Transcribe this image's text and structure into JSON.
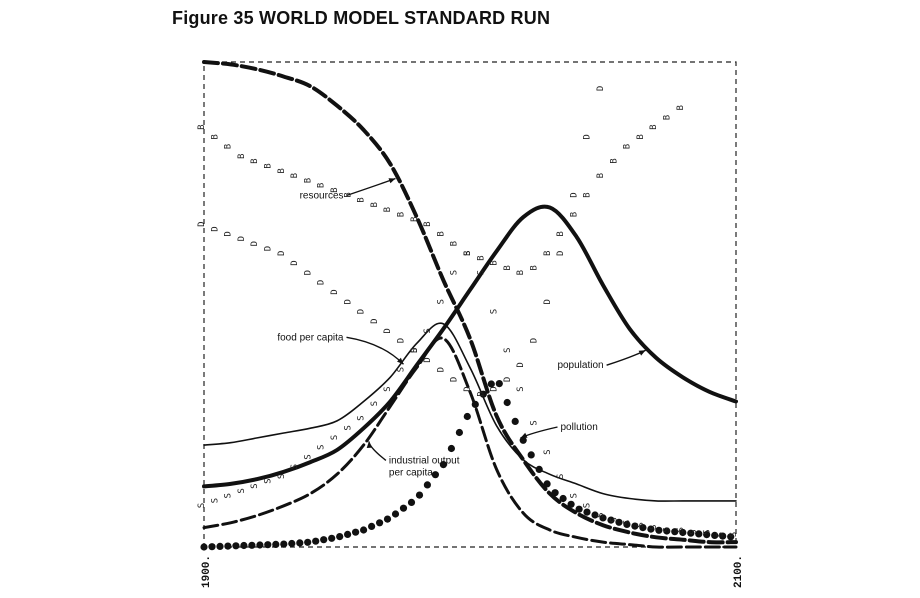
{
  "title": "Figure 35 WORLD MODEL STANDARD RUN",
  "chart_data": {
    "type": "line",
    "xlim": [
      1900,
      2100
    ],
    "x_tick_labels": [
      "1900.",
      "2100."
    ],
    "grid": false,
    "frame": "dashed",
    "series": [
      {
        "key": "resources",
        "name": "resources",
        "marker": "dash",
        "stroke_width": 4,
        "x": [
          1900,
          1910,
          1920,
          1930,
          1940,
          1950,
          1960,
          1970,
          1980,
          1990,
          2000,
          2010,
          2020,
          2030,
          2040,
          2050,
          2060,
          2070,
          2080,
          2090,
          2100
        ],
        "y": [
          1.0,
          0.995,
          0.985,
          0.97,
          0.95,
          0.91,
          0.86,
          0.79,
          0.68,
          0.55,
          0.43,
          0.27,
          0.18,
          0.11,
          0.07,
          0.045,
          0.03,
          0.02,
          0.015,
          0.01,
          0.01
        ]
      },
      {
        "key": "population",
        "name": "population",
        "marker": "line",
        "stroke_width": 4,
        "x": [
          1900,
          1910,
          1920,
          1930,
          1940,
          1950,
          1960,
          1970,
          1980,
          1990,
          2000,
          2010,
          2020,
          2030,
          2040,
          2050,
          2060,
          2070,
          2080,
          2090,
          2100
        ],
        "y": [
          0.125,
          0.13,
          0.14,
          0.155,
          0.175,
          0.2,
          0.245,
          0.3,
          0.375,
          0.45,
          0.53,
          0.61,
          0.68,
          0.7,
          0.64,
          0.54,
          0.45,
          0.39,
          0.35,
          0.32,
          0.3
        ]
      },
      {
        "key": "food_per_capita",
        "name": "food per capita",
        "marker": "line",
        "stroke_width": 1.6,
        "x": [
          1900,
          1910,
          1920,
          1930,
          1940,
          1950,
          1960,
          1970,
          1980,
          1990,
          2000,
          2010,
          2020,
          2030,
          2040,
          2050,
          2060,
          2070,
          2080,
          2090,
          2100
        ],
        "y": [
          0.21,
          0.215,
          0.225,
          0.235,
          0.245,
          0.26,
          0.3,
          0.35,
          0.42,
          0.46,
          0.37,
          0.25,
          0.18,
          0.15,
          0.13,
          0.11,
          0.1,
          0.095,
          0.095,
          0.095,
          0.095
        ]
      },
      {
        "key": "industrial_output_per_capita",
        "name": "industrial output per capita",
        "marker": "dash",
        "stroke_width": 3,
        "x": [
          1900,
          1910,
          1920,
          1930,
          1940,
          1950,
          1960,
          1970,
          1980,
          1990,
          2000,
          2010,
          2020,
          2030,
          2040,
          2050,
          2060,
          2070,
          2080,
          2090,
          2100
        ],
        "y": [
          0.04,
          0.05,
          0.065,
          0.085,
          0.11,
          0.15,
          0.21,
          0.29,
          0.37,
          0.43,
          0.32,
          0.16,
          0.07,
          0.035,
          0.02,
          0.01,
          0.005,
          0.0,
          0.0,
          0.0,
          0.0
        ]
      },
      {
        "key": "pollution",
        "name": "pollution",
        "marker": "dot",
        "stroke_width": 0,
        "x": [
          1900,
          1910,
          1920,
          1930,
          1940,
          1950,
          1960,
          1970,
          1980,
          1990,
          2000,
          2010,
          2020,
          2030,
          2040,
          2050,
          2060,
          2070,
          2080,
          2090,
          2100
        ],
        "y": [
          0.0,
          0.002,
          0.004,
          0.006,
          0.01,
          0.02,
          0.035,
          0.06,
          0.1,
          0.17,
          0.28,
          0.35,
          0.22,
          0.12,
          0.08,
          0.06,
          0.045,
          0.035,
          0.03,
          0.025,
          0.02
        ]
      },
      {
        "key": "birth_rate",
        "name": "B",
        "marker": "letter",
        "letter": "B",
        "x": [
          1900,
          1905,
          1910,
          1915,
          1920,
          1925,
          1930,
          1935,
          1940,
          1945,
          1950,
          1955,
          1960,
          1965,
          1970,
          1975,
          1980,
          1985,
          1990,
          1995,
          2000,
          2005,
          2010,
          2015,
          2020,
          2025,
          2030,
          2035,
          2040,
          2045,
          2050,
          2055,
          2060,
          2065,
          2070,
          2075,
          2080
        ],
        "y": [
          0.86,
          0.84,
          0.82,
          0.8,
          0.79,
          0.78,
          0.77,
          0.76,
          0.75,
          0.74,
          0.73,
          0.72,
          0.71,
          0.7,
          0.69,
          0.68,
          0.67,
          0.66,
          0.64,
          0.62,
          0.6,
          0.59,
          0.58,
          0.57,
          0.56,
          0.57,
          0.6,
          0.64,
          0.68,
          0.72,
          0.76,
          0.79,
          0.82,
          0.84,
          0.86,
          0.88,
          0.9
        ]
      },
      {
        "key": "death_rate",
        "name": "D",
        "marker": "letter",
        "letter": "D",
        "x": [
          1900,
          1905,
          1910,
          1915,
          1920,
          1925,
          1930,
          1935,
          1940,
          1945,
          1950,
          1955,
          1960,
          1965,
          1970,
          1975,
          1980,
          1985,
          1990,
          1995,
          2000,
          2005,
          2010,
          2015,
          2020,
          2025,
          2030,
          2035,
          2040,
          2045,
          2050
        ],
        "y": [
          0.66,
          0.65,
          0.64,
          0.63,
          0.62,
          0.61,
          0.6,
          0.58,
          0.56,
          0.54,
          0.52,
          0.5,
          0.48,
          0.46,
          0.44,
          0.42,
          0.4,
          0.38,
          0.36,
          0.34,
          0.32,
          0.31,
          0.32,
          0.34,
          0.37,
          0.42,
          0.5,
          0.6,
          0.72,
          0.84,
          0.94
        ]
      },
      {
        "key": "services_per_capita",
        "name": "S",
        "marker": "letter",
        "letter": "S",
        "x": [
          1900,
          1905,
          1910,
          1915,
          1920,
          1925,
          1930,
          1935,
          1940,
          1945,
          1950,
          1955,
          1960,
          1965,
          1970,
          1975,
          1980,
          1985,
          1990,
          1995,
          2000,
          2005,
          2010,
          2015,
          2020,
          2025,
          2030,
          2035,
          2040,
          2045,
          2050,
          2055,
          2060,
          2065,
          2070,
          2075,
          2080,
          2085,
          2090,
          2095,
          2100
        ],
        "y": [
          0.08,
          0.09,
          0.1,
          0.11,
          0.12,
          0.13,
          0.14,
          0.16,
          0.18,
          0.2,
          0.22,
          0.24,
          0.26,
          0.29,
          0.32,
          0.36,
          0.4,
          0.44,
          0.5,
          0.56,
          0.6,
          0.56,
          0.48,
          0.4,
          0.32,
          0.25,
          0.19,
          0.14,
          0.1,
          0.08,
          0.06,
          0.05,
          0.045,
          0.04,
          0.035,
          0.03,
          0.03,
          0.025,
          0.025,
          0.02,
          0.02
        ]
      }
    ],
    "annotations": [
      {
        "series": "resources",
        "text": "resources",
        "at_x": 1972,
        "pos": "left"
      },
      {
        "series": "food_per_capita",
        "text": "food per capita",
        "at_x": 1975,
        "pos": "left"
      },
      {
        "series": "industrial_output_per_capita",
        "text": "industrial output",
        "text2": "per capita",
        "at_x": 1962,
        "pos": "below"
      },
      {
        "series": "population",
        "text": "population",
        "at_x": 2066,
        "pos": "left"
      },
      {
        "series": "pollution",
        "text": "pollution",
        "at_x": 2019,
        "pos": "right"
      }
    ]
  }
}
